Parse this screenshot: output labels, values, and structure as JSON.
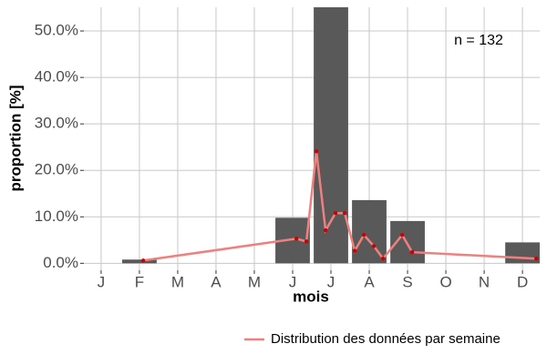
{
  "chart_data": {
    "type": "bar-line",
    "x_label": "mois",
    "y_label": "proportion [%]",
    "annotation": "n = 132",
    "xlim": [
      0.55,
      12.45
    ],
    "xticks": [
      {
        "value": 1,
        "label": "J"
      },
      {
        "value": 2,
        "label": "F"
      },
      {
        "value": 3,
        "label": "M"
      },
      {
        "value": 4,
        "label": "A"
      },
      {
        "value": 5,
        "label": "M"
      },
      {
        "value": 6,
        "label": "J"
      },
      {
        "value": 7,
        "label": "J"
      },
      {
        "value": 8,
        "label": "A"
      },
      {
        "value": 9,
        "label": "S"
      },
      {
        "value": 10,
        "label": "O"
      },
      {
        "value": 11,
        "label": "N"
      },
      {
        "value": 12,
        "label": "D"
      }
    ],
    "ylim": [
      -1.5,
      55.1
    ],
    "yticks": [
      {
        "value": 0,
        "label": "0.0%"
      },
      {
        "value": 10,
        "label": "10.0%"
      },
      {
        "value": 20,
        "label": "20.0%"
      },
      {
        "value": 30,
        "label": "30.0%"
      },
      {
        "value": 40,
        "label": "40.0%"
      },
      {
        "value": 50,
        "label": "50.0%"
      }
    ],
    "grid": true,
    "bars": {
      "color": "#595959",
      "x": [
        2,
        6,
        7,
        8,
        9,
        12
      ],
      "values": [
        0.8,
        9.8,
        55.3,
        13.6,
        9.1,
        4.5
      ]
    },
    "series": [
      {
        "name": "Distribution des données par semaine",
        "color": "#f08080",
        "point_color": "#cc0000",
        "x": [
          2.1,
          6.1,
          6.36,
          6.62,
          6.86,
          7.12,
          7.36,
          7.62,
          7.86,
          8.12,
          8.36,
          8.86,
          9.12,
          12.36
        ],
        "values": [
          0.6,
          5.3,
          4.7,
          24.1,
          7.1,
          10.8,
          10.8,
          2.7,
          6.1,
          3.7,
          1.0,
          6.1,
          2.4,
          1.0
        ]
      }
    ]
  }
}
